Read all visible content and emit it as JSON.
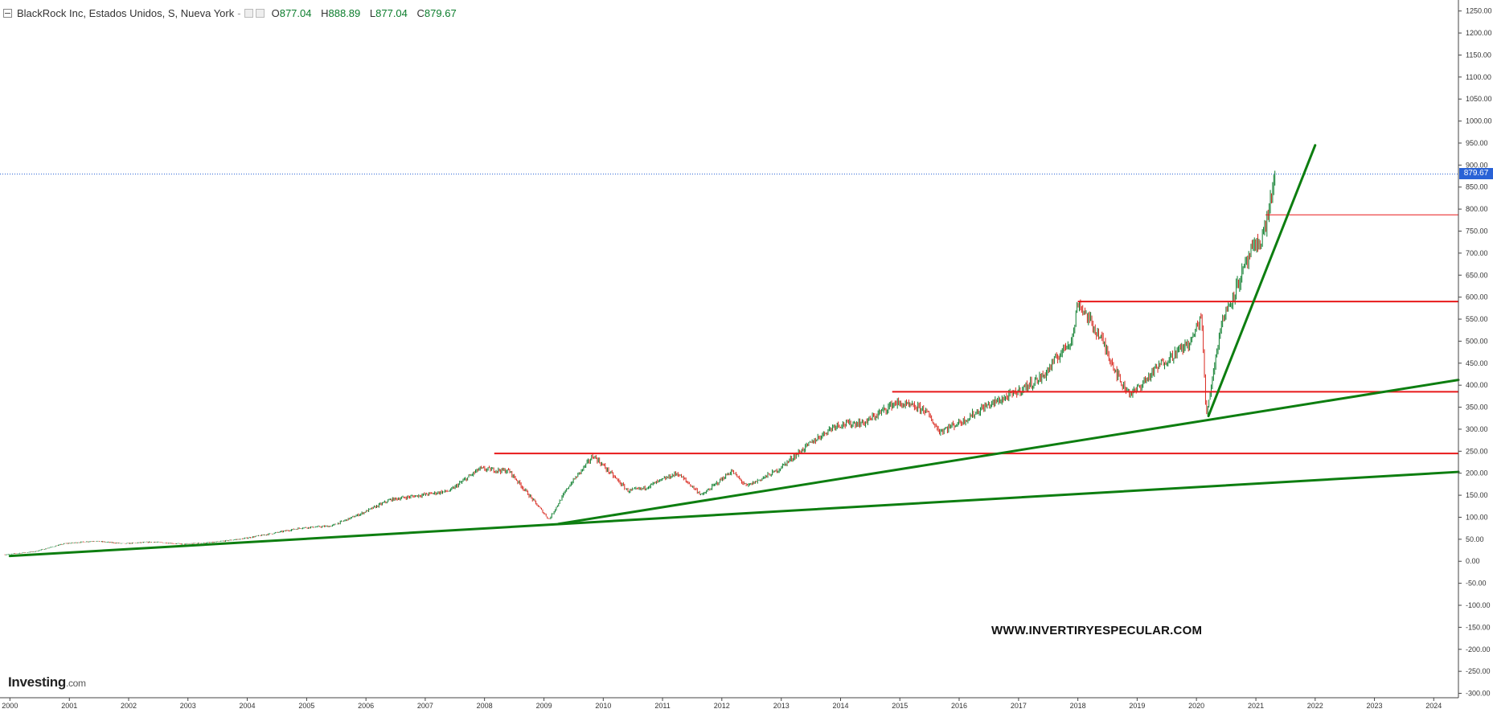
{
  "header": {
    "symbol_label": "BlackRock Inc, Estados Unidos, S, Nueva York",
    "separator": "-",
    "open_key": "O",
    "open_value": "877.04",
    "high_key": "H",
    "high_value": "888.89",
    "low_key": "L",
    "low_value": "877.04",
    "close_key": "C",
    "close_value": "879.67"
  },
  "watermark": "WWW.INVERTIRYESPECULAR.COM",
  "logo": {
    "text": "Investing",
    "suffix": ".com"
  },
  "last_price_tag": "879.67",
  "colors": {
    "up": "#0b7d2c",
    "down": "#d9281e",
    "support_line": "#e8191a",
    "trend_line": "#0d7e10",
    "axis_text": "#333333",
    "price_tag": "#2962d6"
  },
  "chart_data": {
    "type": "line",
    "x_axis": {
      "type": "date",
      "range": [
        "1999-11-01",
        "2024-06-01"
      ],
      "ticks": [
        "2000",
        "2001",
        "2002",
        "2003",
        "2004",
        "2005",
        "2006",
        "2007",
        "2008",
        "2009",
        "2010",
        "2011",
        "2012",
        "2013",
        "2014",
        "2015",
        "2016",
        "2017",
        "2018",
        "2019",
        "2020",
        "2021",
        "2022",
        "2023",
        "2024"
      ]
    },
    "y_axis": {
      "position": "right",
      "range": [
        -310,
        1275
      ],
      "ticks": [
        "1250.00",
        "1200.00",
        "1150.00",
        "1100.00",
        "1050.00",
        "1000.00",
        "950.00",
        "900.00",
        "850.00",
        "800.00",
        "750.00",
        "700.00",
        "650.00",
        "600.00",
        "550.00",
        "500.00",
        "450.00",
        "400.00",
        "350.00",
        "300.00",
        "250.00",
        "200.00",
        "150.00",
        "100.00",
        "50.00",
        "0.00",
        "-50.00",
        "-100.00",
        "-150.00",
        "-200.00",
        "-250.00",
        "-300.00"
      ]
    },
    "grid": false,
    "series": [
      {
        "style": "ohlc-bars",
        "points": [
          [
            "1999-12-01",
            15
          ],
          [
            "2000-06-01",
            22
          ],
          [
            "2000-12-01",
            40
          ],
          [
            "2001-06-01",
            46
          ],
          [
            "2001-12-01",
            40
          ],
          [
            "2002-06-01",
            44
          ],
          [
            "2002-12-01",
            39
          ],
          [
            "2003-06-01",
            43
          ],
          [
            "2003-12-01",
            51
          ],
          [
            "2004-06-01",
            63
          ],
          [
            "2004-12-01",
            76
          ],
          [
            "2005-06-01",
            80
          ],
          [
            "2005-12-01",
            108
          ],
          [
            "2006-06-01",
            140
          ],
          [
            "2006-12-01",
            150
          ],
          [
            "2007-06-01",
            160
          ],
          [
            "2007-12-01",
            210
          ],
          [
            "2008-06-01",
            205
          ],
          [
            "2008-10-01",
            150
          ],
          [
            "2009-02-01",
            95
          ],
          [
            "2009-06-01",
            170
          ],
          [
            "2009-11-01",
            240
          ],
          [
            "2010-06-01",
            160
          ],
          [
            "2010-09-01",
            165
          ],
          [
            "2011-04-01",
            200
          ],
          [
            "2011-09-01",
            150
          ],
          [
            "2012-03-01",
            205
          ],
          [
            "2012-06-01",
            170
          ],
          [
            "2012-12-01",
            205
          ],
          [
            "2013-06-01",
            260
          ],
          [
            "2013-12-01",
            310
          ],
          [
            "2014-06-01",
            315
          ],
          [
            "2014-12-01",
            360
          ],
          [
            "2015-06-01",
            345
          ],
          [
            "2015-09-01",
            295
          ],
          [
            "2016-02-01",
            320
          ],
          [
            "2016-06-01",
            350
          ],
          [
            "2016-12-01",
            380
          ],
          [
            "2017-06-01",
            420
          ],
          [
            "2017-12-01",
            510
          ],
          [
            "2018-01-01",
            590
          ],
          [
            "2018-06-01",
            500
          ],
          [
            "2018-10-01",
            400
          ],
          [
            "2018-12-01",
            380
          ],
          [
            "2019-06-01",
            450
          ],
          [
            "2019-12-01",
            500
          ],
          [
            "2020-02-01",
            560
          ],
          [
            "2020-03-01",
            330
          ],
          [
            "2020-06-01",
            540
          ],
          [
            "2020-12-01",
            700
          ],
          [
            "2021-02-01",
            730
          ],
          [
            "2021-03-01",
            760
          ],
          [
            "2021-05-01",
            880
          ]
        ]
      }
    ],
    "horizontal_lines": [
      {
        "y": 245,
        "x_start": "2008-03-01"
      },
      {
        "y": 385,
        "x_start": "2014-11-15"
      },
      {
        "y": 590,
        "x_start": "2018-01-01"
      },
      {
        "y": 787,
        "x_start": "2021-03-01"
      }
    ],
    "trend_lines": [
      {
        "start": [
          "2000-01-01",
          12
        ],
        "end": [
          "2024-06-01",
          203
        ]
      },
      {
        "start": [
          "2009-04-01",
          85
        ],
        "end": [
          "2024-06-01",
          412
        ]
      },
      {
        "start": [
          "2020-03-15",
          330
        ],
        "end": [
          "2022-01-01",
          945
        ]
      }
    ],
    "last_price": 879.67
  }
}
